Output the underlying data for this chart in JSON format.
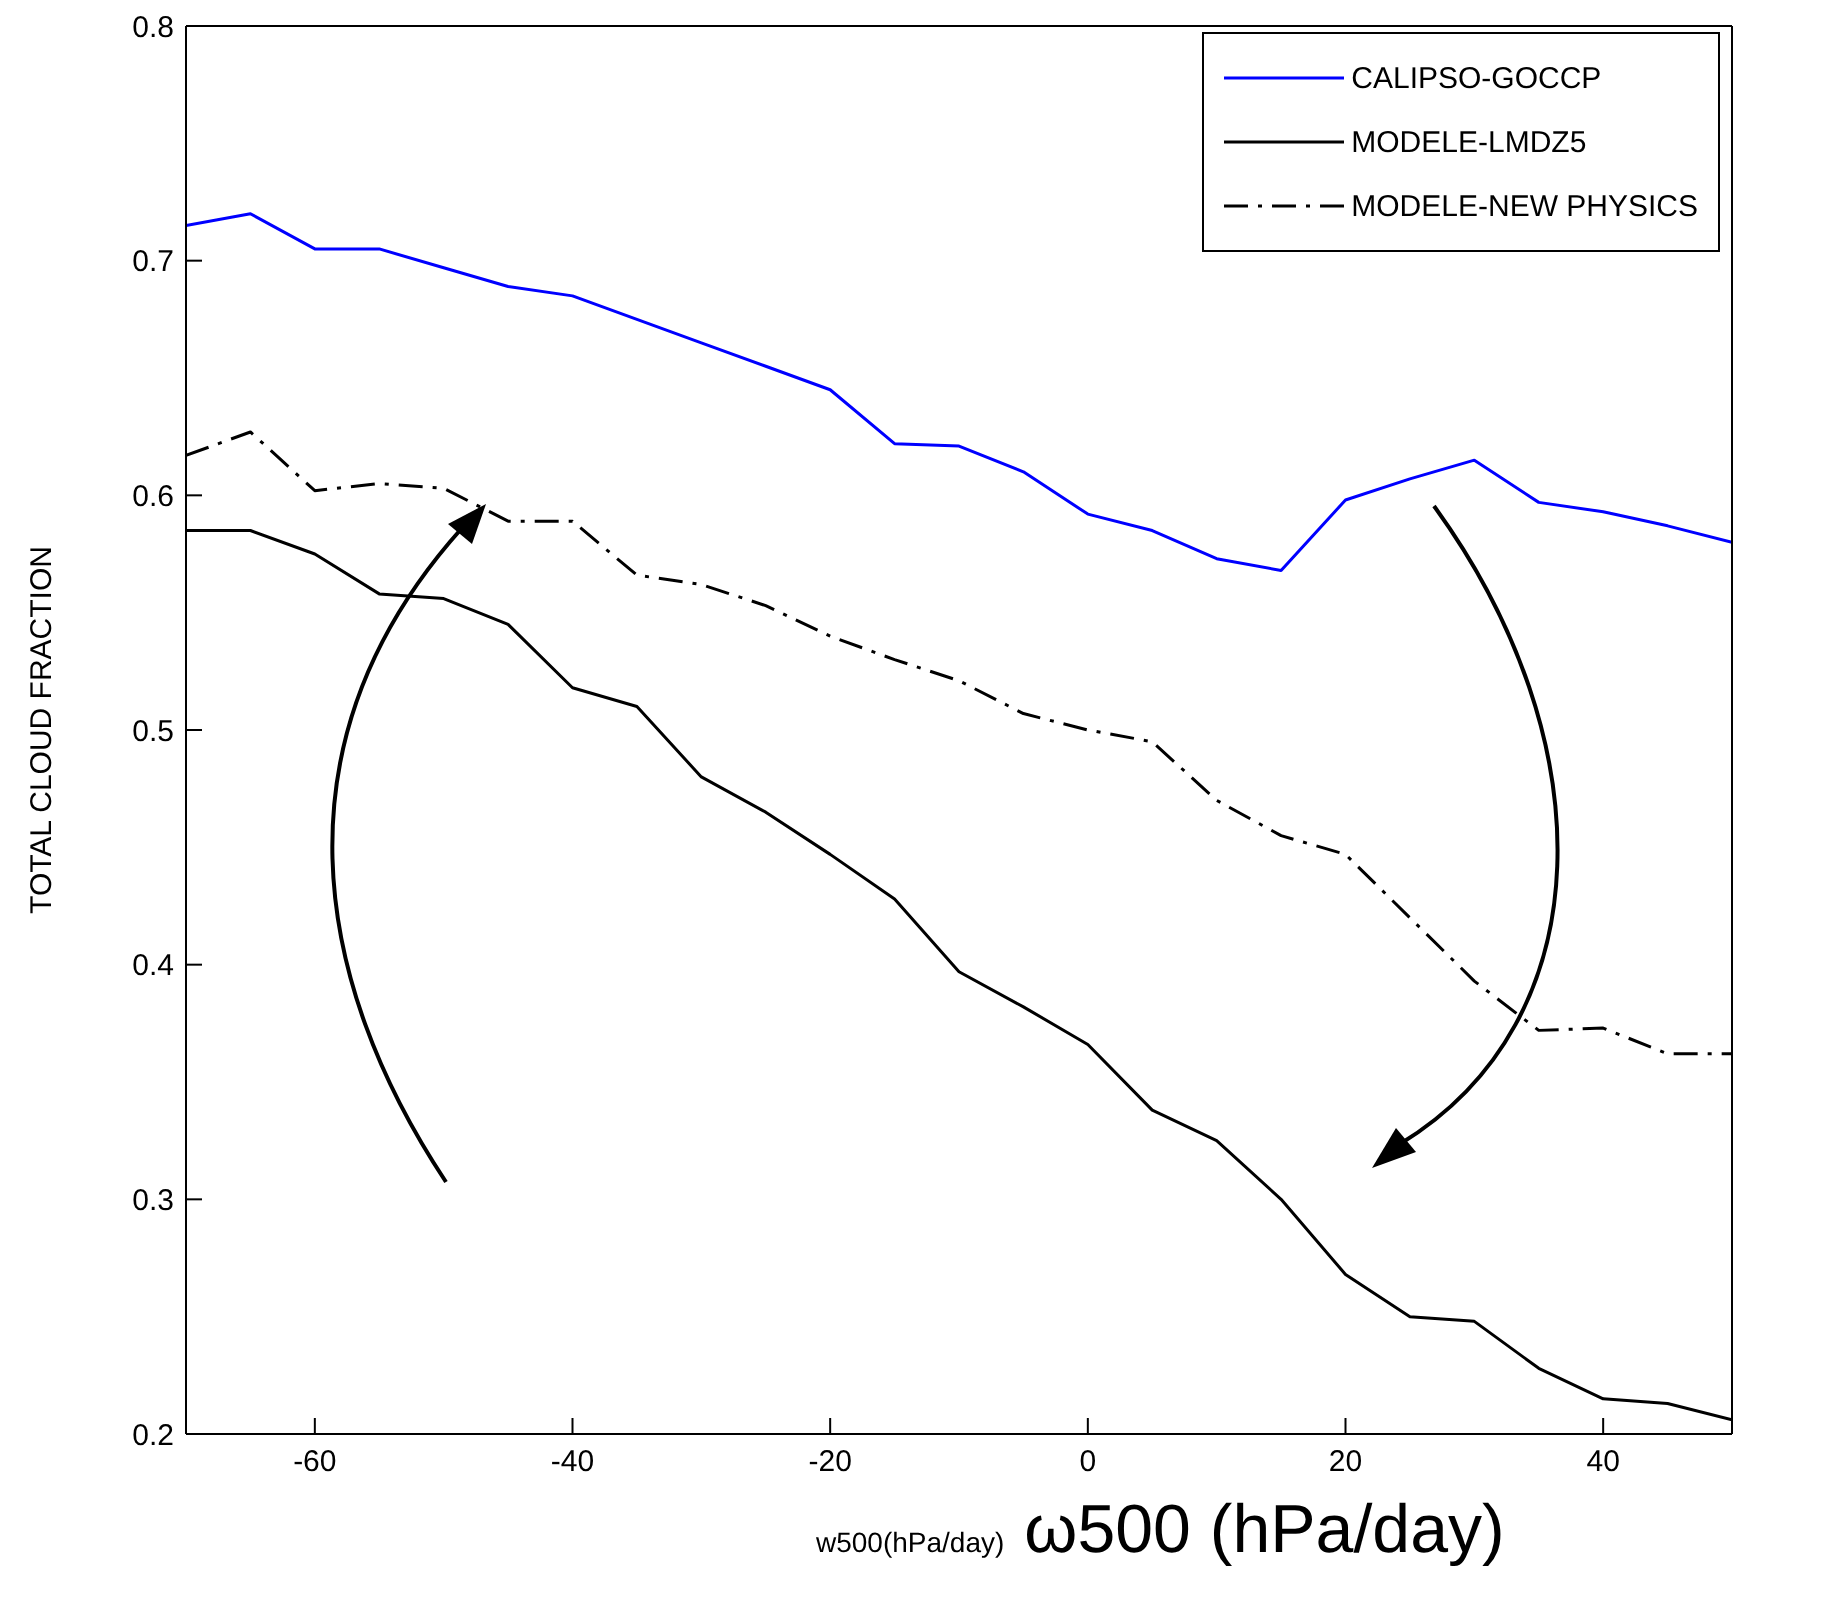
{
  "chart_data": {
    "type": "line",
    "xlabel": "w500(hPa/day)",
    "ylabel": "TOTAL CLOUD FRACTION",
    "annotations": [
      "ω500 (hPa/day)"
    ],
    "x": [
      -70,
      -65,
      -60,
      -55,
      -50,
      -45,
      -40,
      -35,
      -30,
      -25,
      -20,
      -15,
      -10,
      -5,
      0,
      5,
      10,
      15,
      20,
      25,
      30,
      35,
      40,
      45,
      50
    ],
    "series": [
      {
        "name": "CALIPSO-GOCCP",
        "color": "#0000ff",
        "line_style": "solid",
        "values": [
          0.715,
          0.72,
          0.705,
          0.705,
          0.697,
          0.689,
          0.685,
          0.675,
          0.665,
          0.655,
          0.645,
          0.622,
          0.621,
          0.61,
          0.592,
          0.585,
          0.573,
          0.568,
          0.598,
          0.607,
          0.615,
          0.597,
          0.593,
          0.587,
          0.58
        ]
      },
      {
        "name": "MODELE-LMDZ5",
        "color": "#000000",
        "line_style": "solid",
        "values": [
          0.585,
          0.585,
          0.575,
          0.558,
          0.556,
          0.545,
          0.518,
          0.51,
          0.48,
          0.465,
          0.447,
          0.428,
          0.397,
          0.382,
          0.366,
          0.338,
          0.325,
          0.3,
          0.268,
          0.25,
          0.248,
          0.228,
          0.215,
          0.213,
          0.206
        ]
      },
      {
        "name": "MODELE-NEW PHYSICS",
        "color": "#000000",
        "line_style": "dashed",
        "values": [
          0.617,
          0.627,
          0.602,
          0.605,
          0.603,
          0.589,
          0.589,
          0.566,
          0.562,
          0.553,
          0.54,
          0.53,
          0.521,
          0.507,
          0.5,
          0.495,
          0.47,
          0.455,
          0.447,
          0.42,
          0.393,
          0.372,
          0.373,
          0.362,
          0.362
        ]
      }
    ],
    "xlim": [
      -70,
      50
    ],
    "xticks": [
      -60,
      -40,
      -20,
      0,
      20,
      40
    ],
    "ylim": [
      0.2,
      0.8
    ],
    "yticks": [
      0.2,
      0.3,
      0.4,
      0.5,
      0.6,
      0.7,
      0.8
    ],
    "legend": "top right"
  }
}
